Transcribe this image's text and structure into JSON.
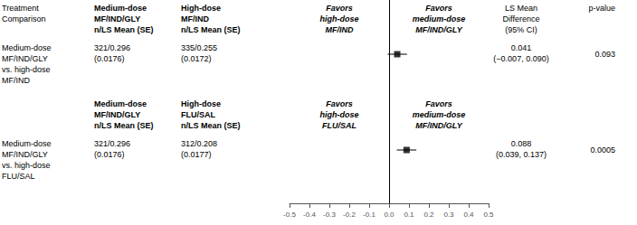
{
  "chart_data": {
    "type": "forest",
    "xlim": [
      -0.5,
      0.5
    ],
    "xticks": [
      -0.5,
      -0.4,
      -0.3,
      -0.2,
      -0.1,
      {
        "value": 0,
        "label": "0.0"
      },
      0.1,
      0.2,
      0.3,
      0.4,
      0.5
    ],
    "reference_line": 0,
    "grid": false,
    "tick_labels": "x",
    "marker": "square",
    "color": "#000000",
    "studies": [
      {
        "header": {
          "treatment": [
            "Treatment",
            "Comparison"
          ],
          "col1": [
            "Medium-dose",
            "MF/IND/GLY",
            "n/LS Mean (SE)"
          ],
          "col2": [
            "High-dose",
            "MF/IND",
            "n/LS Mean (SE)"
          ],
          "favors_left": [
            "Favors",
            "high-dose",
            "MF/IND"
          ],
          "favors_right": [
            "Favors",
            "medium-dose",
            "MF/IND/GLY"
          ],
          "ls_mean": [
            "LS Mean",
            "Difference",
            "(95% CI)"
          ],
          "p_value": [
            "p-value"
          ]
        },
        "comparison": [
          "Medium-dose",
          "MF/IND/GLY",
          "vs. high-dose",
          "MF/IND"
        ],
        "col1": [
          "321/0.296",
          "(0.0176)"
        ],
        "col2": [
          "335/0.255",
          "(0.0172)"
        ],
        "ls_mean": [
          "0.041",
          "(−0.007, 0.090)"
        ],
        "p_value": "0.093",
        "estimate": 0.041,
        "ci_low": -0.007,
        "ci_high": 0.09
      },
      {
        "header": {
          "col1": [
            "Medium-dose",
            "MF/IND/GLY",
            "n/LS Mean (SE)"
          ],
          "col2": [
            "High-dose",
            "FLU/SAL",
            "n/LS Mean (SE)"
          ],
          "favors_left": [
            "Favors",
            "high-dose",
            "FLU/SAL"
          ],
          "favors_right": [
            "Favors",
            "medium-dose",
            "MF/IND/GLY"
          ]
        },
        "comparison": [
          "Medium-dose",
          "MF/IND/GLY",
          "vs. high-dose",
          "FLU/SAL"
        ],
        "col1": [
          "321/0.296",
          "(0.0176)"
        ],
        "col2": [
          "312/0.208",
          "(0.0177)"
        ],
        "ls_mean": [
          "0.088",
          "(0.039, 0.137)"
        ],
        "p_value": "0.0005",
        "estimate": 0.088,
        "ci_low": 0.039,
        "ci_high": 0.137
      }
    ]
  }
}
